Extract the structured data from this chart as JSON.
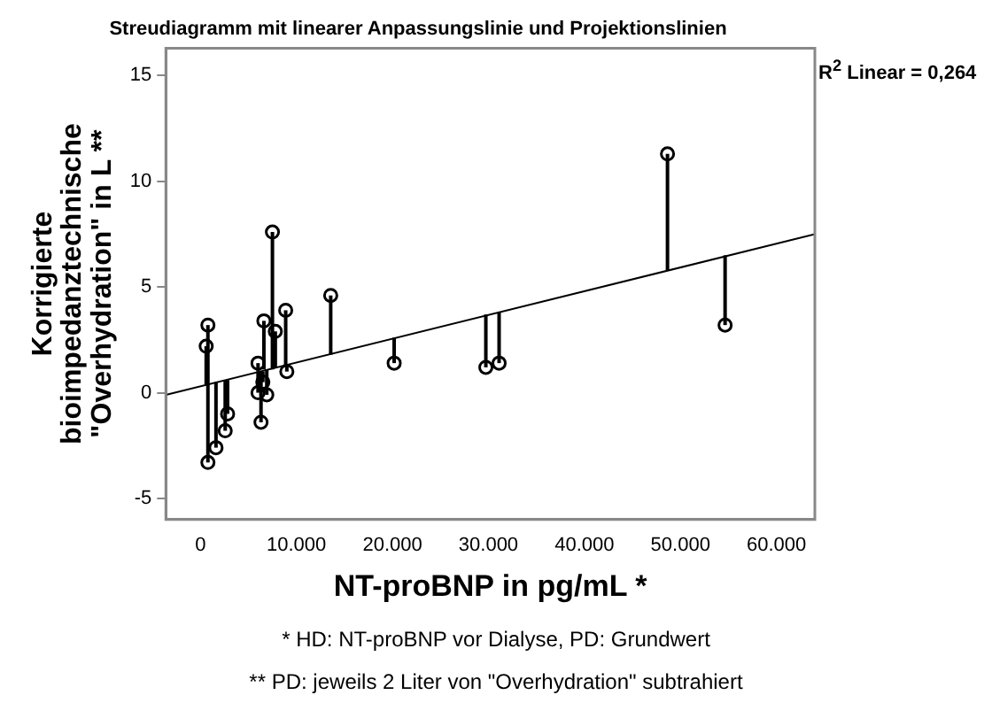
{
  "chart_data": {
    "type": "scatter",
    "title": "Streudiagramm mit linearer Anpassungslinie und Projektionslinien",
    "xlabel": "NT-proBNP in pg/mL *",
    "ylabel": "Korrigierte bioimpedanztechnische \"Overhydration\" in L **",
    "series": [
      {
        "type": "scatter",
        "color": "#000000",
        "marker": "circle",
        "errors": [
          [
            0.4,
            2.2
          ],
          [
            0.4,
            3.2
          ],
          [
            -3.3,
            0.4
          ],
          [
            -2.6,
            0.5
          ],
          [
            -1.8,
            0.6
          ],
          [
            -1.0,
            0.6
          ],
          [
            1.0,
            1.4
          ],
          [
            0,
            1.0
          ],
          [
            -1.4,
            1.0
          ],
          [
            0.5,
            1.0
          ],
          [
            1.1,
            3.4
          ],
          [
            -0.1,
            1.1
          ],
          [
            1.1,
            7.6
          ],
          [
            1.2,
            2.9
          ],
          [
            1.3,
            3.9
          ],
          [
            1.0,
            1.3
          ],
          [
            1.8,
            4.6
          ],
          [
            1.4,
            2.6
          ],
          [
            1.2,
            3.7
          ],
          [
            1.4,
            3.8
          ],
          [
            5.8,
            11.3
          ],
          [
            3.2,
            6.5
          ]
        ],
        "x": [
          600,
          780,
          780,
          1620,
          2580,
          2830,
          6000,
          6000,
          6310,
          6500,
          6610,
          6910,
          7500,
          7800,
          8880,
          9000,
          13570,
          20180,
          29730,
          31110,
          48650,
          54650
        ],
        "values": [
          2.2,
          3.2,
          -3.3,
          -2.6,
          -1.8,
          -1.0,
          1.4,
          0,
          -1.4,
          0.5,
          3.4,
          -0.1,
          7.6,
          2.9,
          3.9,
          1.0,
          4.6,
          1.4,
          1.2,
          1.4,
          11.3,
          3.2
        ]
      },
      {
        "type": "line",
        "color": "#000000",
        "x": [
          -3600,
          64000
        ],
        "values": [
          -0.1,
          7.5
        ]
      }
    ],
    "grid": false,
    "legend": false,
    "xlim": [
      -3600,
      64000
    ],
    "ylim": [
      -6,
      16.3
    ],
    "xticks": [
      0,
      {
        "value": 10000,
        "label": "10.000"
      },
      {
        "value": 20000,
        "label": "20.000"
      },
      {
        "value": 30000,
        "label": "30.000"
      },
      {
        "value": 40000,
        "label": "40.000"
      },
      {
        "value": 50000,
        "label": "50.000"
      },
      {
        "value": 60000,
        "label": "60.000"
      }
    ],
    "yticks": [
      -5,
      0,
      5,
      10,
      15
    ],
    "annotations": [
      "R$^{2}$ Linear = 0,264",
      "* HD: NT-proBNP vor Dialyse, PD: Grundwert",
      "** PD: jeweils 2 Liter von \"Overhydration\" subtrahiert"
    ]
  }
}
